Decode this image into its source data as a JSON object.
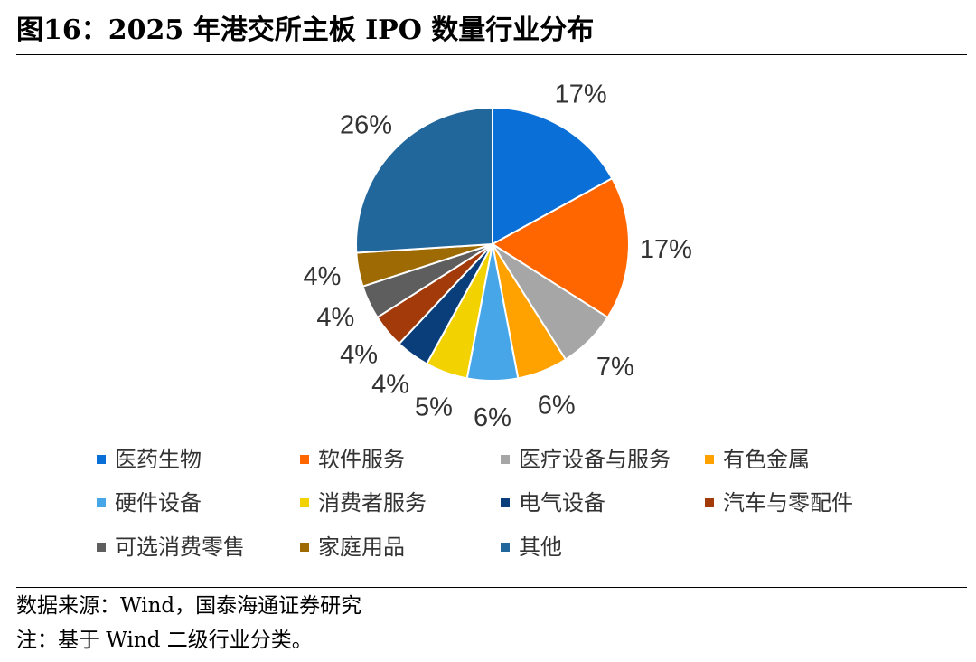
{
  "figure": {
    "title": "图16：2025 年港交所主板 IPO 数量行业分布",
    "source": "数据来源：Wind，国泰海通证券研究",
    "note": "注：基于 Wind 二级行业分类。"
  },
  "chart_data": {
    "type": "pie",
    "title": "2025 年港交所主板 IPO 数量行业分布",
    "unit": "%",
    "start": "12 o'clock, clockwise",
    "legend_position": "bottom",
    "slices": [
      {
        "label": "医药生物",
        "value": 17,
        "display": "17%",
        "color": "#0A6FD6"
      },
      {
        "label": "软件服务",
        "value": 17,
        "display": "17%",
        "color": "#FF6600"
      },
      {
        "label": "医疗设备与服务",
        "value": 7,
        "display": "7%",
        "color": "#A6A6A6"
      },
      {
        "label": "有色金属",
        "value": 6,
        "display": "6%",
        "color": "#FFA200"
      },
      {
        "label": "硬件设备",
        "value": 6,
        "display": "6%",
        "color": "#47A6E8"
      },
      {
        "label": "消费者服务",
        "value": 5,
        "display": "5%",
        "color": "#F2D200"
      },
      {
        "label": "电气设备",
        "value": 4,
        "display": "4%",
        "color": "#0A3E7A"
      },
      {
        "label": "汽车与零配件",
        "value": 4,
        "display": "4%",
        "color": "#A33A0A"
      },
      {
        "label": "可选消费零售",
        "value": 4,
        "display": "4%",
        "color": "#5E5E5E"
      },
      {
        "label": "家庭用品",
        "value": 4,
        "display": "4%",
        "color": "#9E6A03"
      },
      {
        "label": "其他",
        "value": 26,
        "display": "26%",
        "color": "#22679B"
      }
    ]
  }
}
